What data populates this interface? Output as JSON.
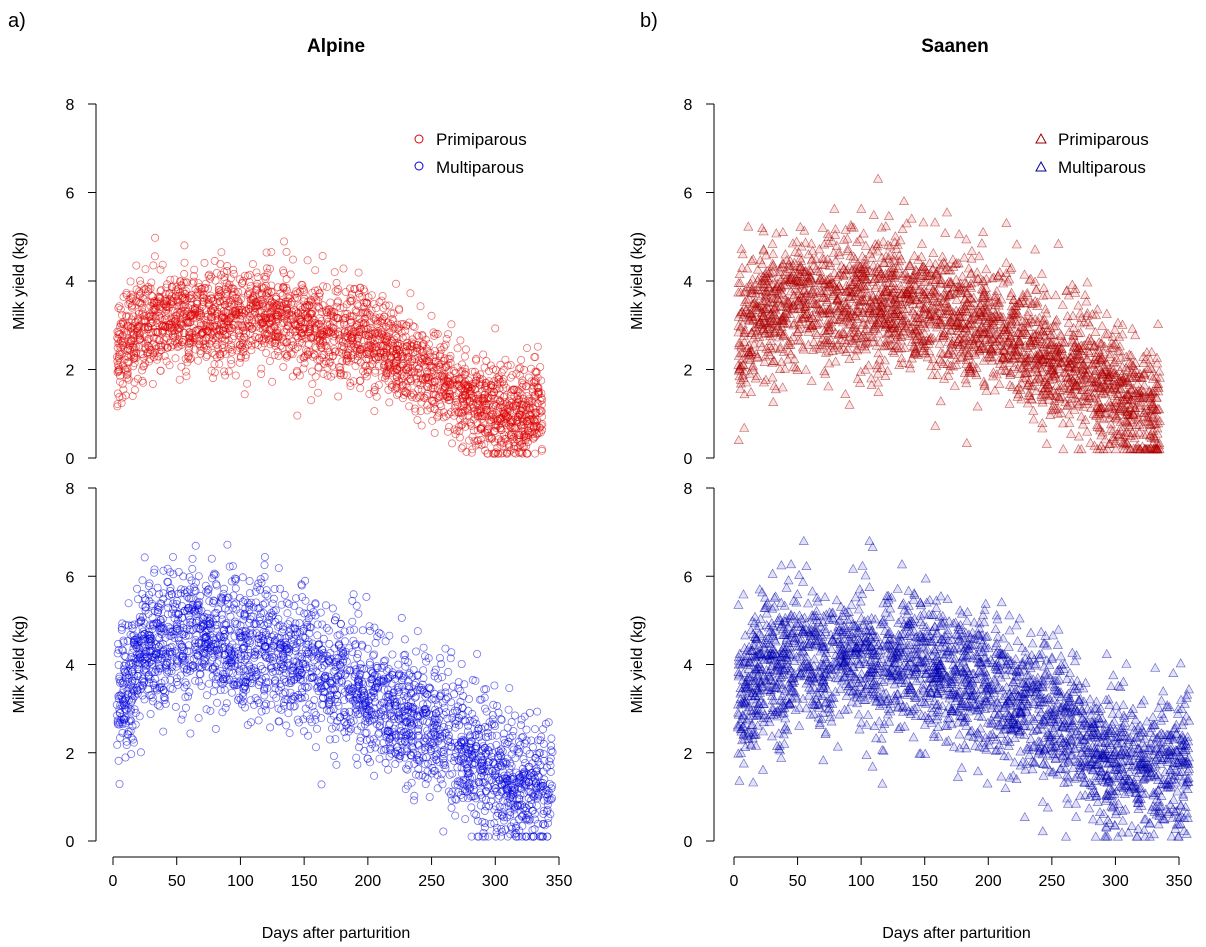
{
  "panel_labels": [
    "a)",
    "b)"
  ],
  "colors": {
    "primiparous": "#dd0000",
    "multiparous": "#0000dd"
  },
  "chart_data": [
    {
      "panel": "a)",
      "title": "Alpine",
      "marker": "circle",
      "type": "scatter",
      "xlabel": "Days after parturition",
      "ylabel": "Milk yield (kg)",
      "xlim": [
        0,
        350
      ],
      "ylim": [
        0,
        8
      ],
      "xticks": [
        "0",
        "50",
        "100",
        "150",
        "200",
        "250",
        "300",
        "350"
      ],
      "yticks": [
        "0",
        "2",
        "4",
        "6",
        "8"
      ],
      "legend": [
        "Primiparous",
        "Multiparous"
      ],
      "series": [
        {
          "name": "Primiparous",
          "color": "#dd0000",
          "x_range": [
            3,
            337
          ],
          "trend": [
            [
              3,
              2.3
            ],
            [
              20,
              2.95
            ],
            [
              50,
              3.2
            ],
            [
              100,
              3.25
            ],
            [
              150,
              3.0
            ],
            [
              200,
              2.65
            ],
            [
              250,
              1.9
            ],
            [
              280,
              1.3
            ],
            [
              310,
              0.9
            ],
            [
              337,
              1.1
            ]
          ],
          "spread": 0.55,
          "y_min": 0.1,
          "y_max": 5.2
        },
        {
          "name": "Multiparous",
          "color": "#0000dd",
          "x_range": [
            3,
            345
          ],
          "trend": [
            [
              3,
              3.0
            ],
            [
              20,
              4.2
            ],
            [
              45,
              4.7
            ],
            [
              100,
              4.5
            ],
            [
              150,
              4.0
            ],
            [
              200,
              3.4
            ],
            [
              250,
              2.6
            ],
            [
              300,
              1.5
            ],
            [
              345,
              0.9
            ]
          ],
          "spread": 0.75,
          "y_min": 0.1,
          "y_max": 6.8
        }
      ]
    },
    {
      "panel": "b)",
      "title": "Saanen",
      "marker": "triangle",
      "type": "scatter",
      "xlabel": "Days after parturition",
      "ylabel": "Milk yield (kg)",
      "xlim": [
        0,
        350
      ],
      "ylim": [
        0,
        8
      ],
      "xticks": [
        "0",
        "50",
        "100",
        "150",
        "200",
        "250",
        "300",
        "350"
      ],
      "yticks": [
        "0",
        "2",
        "4",
        "6",
        "8"
      ],
      "legend": [
        "Primiparous",
        "Multiparous"
      ],
      "series": [
        {
          "name": "Primiparous",
          "color": "#dd0000",
          "x_range": [
            3,
            335
          ],
          "trend": [
            [
              3,
              2.6
            ],
            [
              20,
              3.3
            ],
            [
              50,
              3.6
            ],
            [
              100,
              3.6
            ],
            [
              150,
              3.4
            ],
            [
              200,
              3.0
            ],
            [
              250,
              2.3
            ],
            [
              300,
              1.5
            ],
            [
              335,
              0.8
            ]
          ],
          "spread": 0.75,
          "y_min": 0.2,
          "y_max": 6.6
        },
        {
          "name": "Multiparous",
          "color": "#0000dd",
          "x_range": [
            3,
            358
          ],
          "trend": [
            [
              3,
              3.0
            ],
            [
              20,
              3.9
            ],
            [
              50,
              4.2
            ],
            [
              100,
              4.1
            ],
            [
              150,
              3.9
            ],
            [
              200,
              3.5
            ],
            [
              250,
              2.8
            ],
            [
              300,
              1.8
            ],
            [
              358,
              1.6
            ]
          ],
          "spread": 0.8,
          "y_min": 0.1,
          "y_max": 6.8
        }
      ]
    }
  ]
}
